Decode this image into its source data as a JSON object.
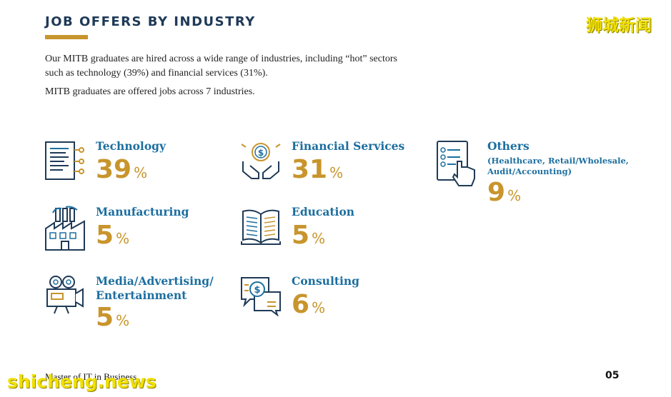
{
  "header": {
    "title": "JOB OFFERS BY INDUSTRY",
    "watermark": "狮城新闻"
  },
  "intro": {
    "line1": "Our MITB graduates are hired across a wide range of industries, including “hot” sectors such as technology (39%) and financial services (31%).",
    "line2": "MITB graduates are offered jobs across 7 industries."
  },
  "colors": {
    "heading": "#1f3a57",
    "label": "#1d6fa0",
    "accent": "#c8952d"
  },
  "industries": [
    {
      "label": "Technology",
      "value": "39",
      "unit": "%",
      "icon": "document-circuit-icon"
    },
    {
      "label": "Financial Services",
      "value": "31",
      "unit": "%",
      "icon": "hands-coin-icon"
    },
    {
      "label": "Others",
      "sub1": "(Healthcare, Retail/Wholesale,",
      "sub2": "Audit/Accounting)",
      "value": "9",
      "unit": "%",
      "icon": "checklist-hand-icon"
    },
    {
      "label": "Manufacturing",
      "value": "5",
      "unit": "%",
      "icon": "factory-icon"
    },
    {
      "label": "Education",
      "value": "5",
      "unit": "%",
      "icon": "open-book-icon"
    },
    {
      "label": "Media/Advertising/",
      "label2": "Entertainment",
      "value": "5",
      "unit": "%",
      "icon": "video-camera-icon"
    },
    {
      "label": "Consulting",
      "value": "6",
      "unit": "%",
      "icon": "chat-dollar-icon"
    }
  ],
  "footer": {
    "program": "Master of IT in Business",
    "page": "05",
    "watermark": "shicheng.news"
  }
}
